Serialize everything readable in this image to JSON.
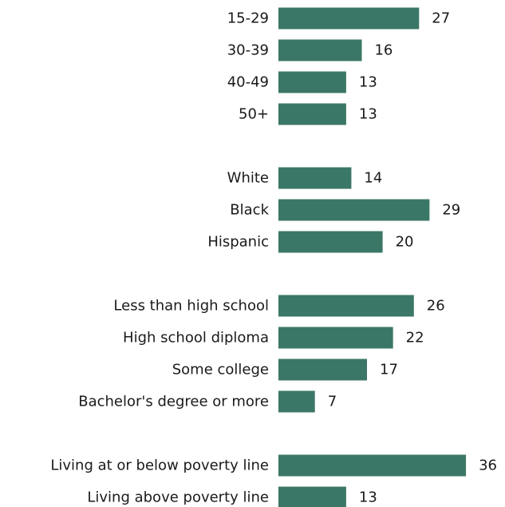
{
  "chart_data": {
    "type": "bar",
    "orientation": "horizontal",
    "bar_color": "#3b7766",
    "xlim": [
      0,
      36
    ],
    "grid": false,
    "legend": "none",
    "groups": [
      {
        "categories": [
          "15-29",
          "30-39",
          "40-49",
          "50+"
        ],
        "values": [
          27,
          16,
          13,
          13
        ]
      },
      {
        "categories": [
          "White",
          "Black",
          "Hispanic"
        ],
        "values": [
          14,
          29,
          20
        ]
      },
      {
        "categories": [
          "Less than high school",
          "High school diploma",
          "Some college",
          "Bachelor's degree or more"
        ],
        "values": [
          26,
          22,
          17,
          7
        ]
      },
      {
        "categories": [
          "Living at or below poverty line",
          "Living above poverty line"
        ],
        "values": [
          36,
          13
        ]
      }
    ]
  }
}
